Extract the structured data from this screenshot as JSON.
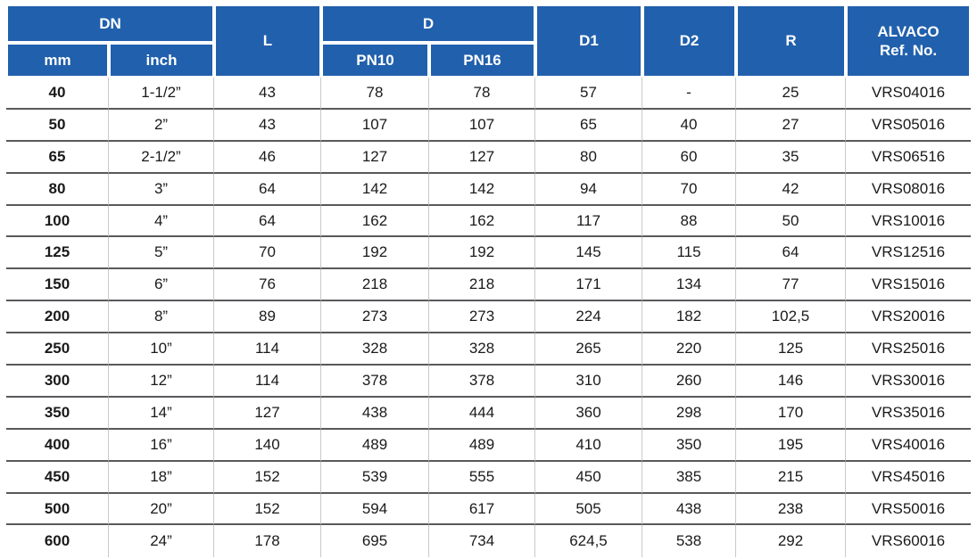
{
  "colors": {
    "header_bg": "#2160ac",
    "header_text": "#ffffff",
    "body_text": "#1a1a1a",
    "row_divider": "#58595b",
    "col_divider": "#c9c9c9"
  },
  "table": {
    "header": {
      "dn": "DN",
      "mm": "mm",
      "inch": "inch",
      "l": "L",
      "d": "D",
      "pn10": "PN10",
      "pn16": "PN16",
      "d1": "D1",
      "d2": "D2",
      "r": "R",
      "ref": "ALVACO\nRef. No."
    },
    "columns": [
      "mm",
      "inch",
      "L",
      "PN10",
      "PN16",
      "D1",
      "D2",
      "R",
      "ref-no"
    ],
    "rows": [
      [
        "40",
        "1-1/2”",
        "43",
        "78",
        "78",
        "57",
        "-",
        "25",
        "VRS04016"
      ],
      [
        "50",
        "2”",
        "43",
        "107",
        "107",
        "65",
        "40",
        "27",
        "VRS05016"
      ],
      [
        "65",
        "2-1/2”",
        "46",
        "127",
        "127",
        "80",
        "60",
        "35",
        "VRS06516"
      ],
      [
        "80",
        "3”",
        "64",
        "142",
        "142",
        "94",
        "70",
        "42",
        "VRS08016"
      ],
      [
        "100",
        "4”",
        "64",
        "162",
        "162",
        "117",
        "88",
        "50",
        "VRS10016"
      ],
      [
        "125",
        "5”",
        "70",
        "192",
        "192",
        "145",
        "115",
        "64",
        "VRS12516"
      ],
      [
        "150",
        "6”",
        "76",
        "218",
        "218",
        "171",
        "134",
        "77",
        "VRS15016"
      ],
      [
        "200",
        "8”",
        "89",
        "273",
        "273",
        "224",
        "182",
        "102,5",
        "VRS20016"
      ],
      [
        "250",
        "10”",
        "114",
        "328",
        "328",
        "265",
        "220",
        "125",
        "VRS25016"
      ],
      [
        "300",
        "12”",
        "114",
        "378",
        "378",
        "310",
        "260",
        "146",
        "VRS30016"
      ],
      [
        "350",
        "14”",
        "127",
        "438",
        "444",
        "360",
        "298",
        "170",
        "VRS35016"
      ],
      [
        "400",
        "16”",
        "140",
        "489",
        "489",
        "410",
        "350",
        "195",
        "VRS40016"
      ],
      [
        "450",
        "18”",
        "152",
        "539",
        "555",
        "450",
        "385",
        "215",
        "VRS45016"
      ],
      [
        "500",
        "20”",
        "152",
        "594",
        "617",
        "505",
        "438",
        "238",
        "VRS50016"
      ],
      [
        "600",
        "24”",
        "178",
        "695",
        "734",
        "624,5",
        "538",
        "292",
        "VRS60016"
      ]
    ]
  }
}
